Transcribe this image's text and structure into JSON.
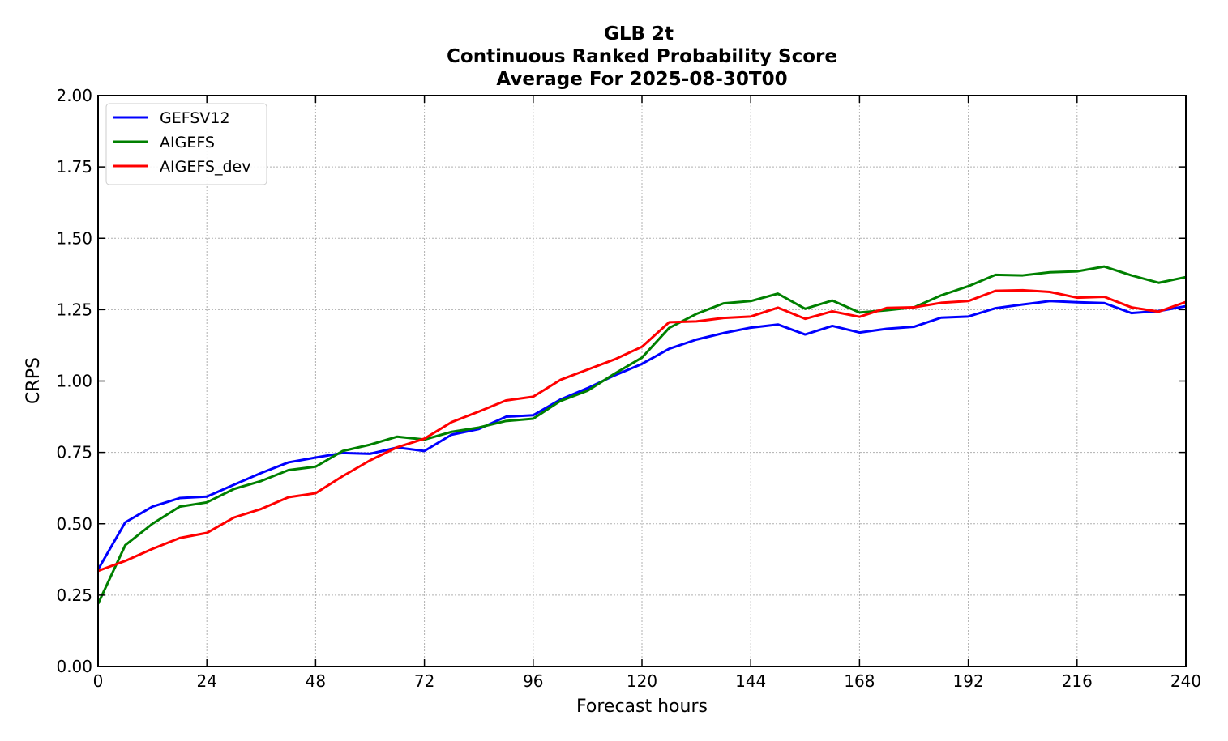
{
  "chart_data": {
    "type": "line",
    "title": [
      "GLB 2t",
      "Continuous Ranked Probability Score",
      "Average For 2025-08-30T00"
    ],
    "xlabel": "Forecast hours",
    "ylabel": "CRPS",
    "xlim": [
      0,
      240
    ],
    "ylim": [
      0,
      2.0
    ],
    "xticks": [
      0,
      24,
      48,
      72,
      96,
      120,
      144,
      168,
      192,
      216,
      240
    ],
    "xtick_labels": [
      "0",
      "24",
      "48",
      "72",
      "96",
      "120",
      "144",
      "168",
      "192",
      "216",
      "240"
    ],
    "yticks": [
      0,
      0.25,
      0.5,
      0.75,
      1.0,
      1.25,
      1.5,
      1.75,
      2.0
    ],
    "ytick_labels": [
      "0.00",
      "0.25",
      "0.50",
      "0.75",
      "1.00",
      "1.25",
      "1.50",
      "1.75",
      "2.00"
    ],
    "grid": true,
    "legend_position": "top-left",
    "x": [
      0,
      6,
      12,
      18,
      24,
      30,
      36,
      42,
      48,
      54,
      60,
      66,
      72,
      78,
      84,
      90,
      96,
      102,
      108,
      114,
      120,
      126,
      132,
      138,
      144,
      150,
      156,
      162,
      168,
      174,
      180,
      186,
      192,
      198,
      204,
      210,
      216,
      222,
      228,
      234,
      240
    ],
    "series": [
      {
        "name": "GEFSV12",
        "color": "#0000ff",
        "values": [
          0.34,
          0.505,
          0.56,
          0.59,
          0.595,
          0.637,
          0.678,
          0.715,
          0.732,
          0.748,
          0.745,
          0.767,
          0.755,
          0.812,
          0.832,
          0.875,
          0.88,
          0.935,
          0.975,
          1.02,
          1.06,
          1.113,
          1.145,
          1.168,
          1.187,
          1.198,
          1.163,
          1.193,
          1.17,
          1.183,
          1.19,
          1.222,
          1.226,
          1.255,
          1.268,
          1.28,
          1.276,
          1.273,
          1.238,
          1.245,
          1.262
        ]
      },
      {
        "name": "AIGEFS",
        "color": "#008000",
        "values": [
          0.22,
          0.425,
          0.5,
          0.56,
          0.575,
          0.622,
          0.65,
          0.688,
          0.7,
          0.755,
          0.777,
          0.805,
          0.795,
          0.822,
          0.837,
          0.86,
          0.868,
          0.93,
          0.966,
          1.026,
          1.082,
          1.186,
          1.235,
          1.272,
          1.28,
          1.306,
          1.253,
          1.282,
          1.24,
          1.248,
          1.258,
          1.3,
          1.332,
          1.372,
          1.37,
          1.381,
          1.384,
          1.401,
          1.37,
          1.344,
          1.364
        ]
      },
      {
        "name": "AIGEFS_dev",
        "color": "#ff0000",
        "values": [
          0.335,
          0.37,
          0.412,
          0.45,
          0.468,
          0.522,
          0.552,
          0.593,
          0.607,
          0.667,
          0.722,
          0.768,
          0.798,
          0.856,
          0.893,
          0.932,
          0.945,
          1.004,
          1.04,
          1.076,
          1.12,
          1.206,
          1.209,
          1.221,
          1.226,
          1.257,
          1.218,
          1.244,
          1.225,
          1.256,
          1.258,
          1.274,
          1.28,
          1.316,
          1.318,
          1.312,
          1.292,
          1.295,
          1.258,
          1.243,
          1.277
        ]
      }
    ]
  }
}
